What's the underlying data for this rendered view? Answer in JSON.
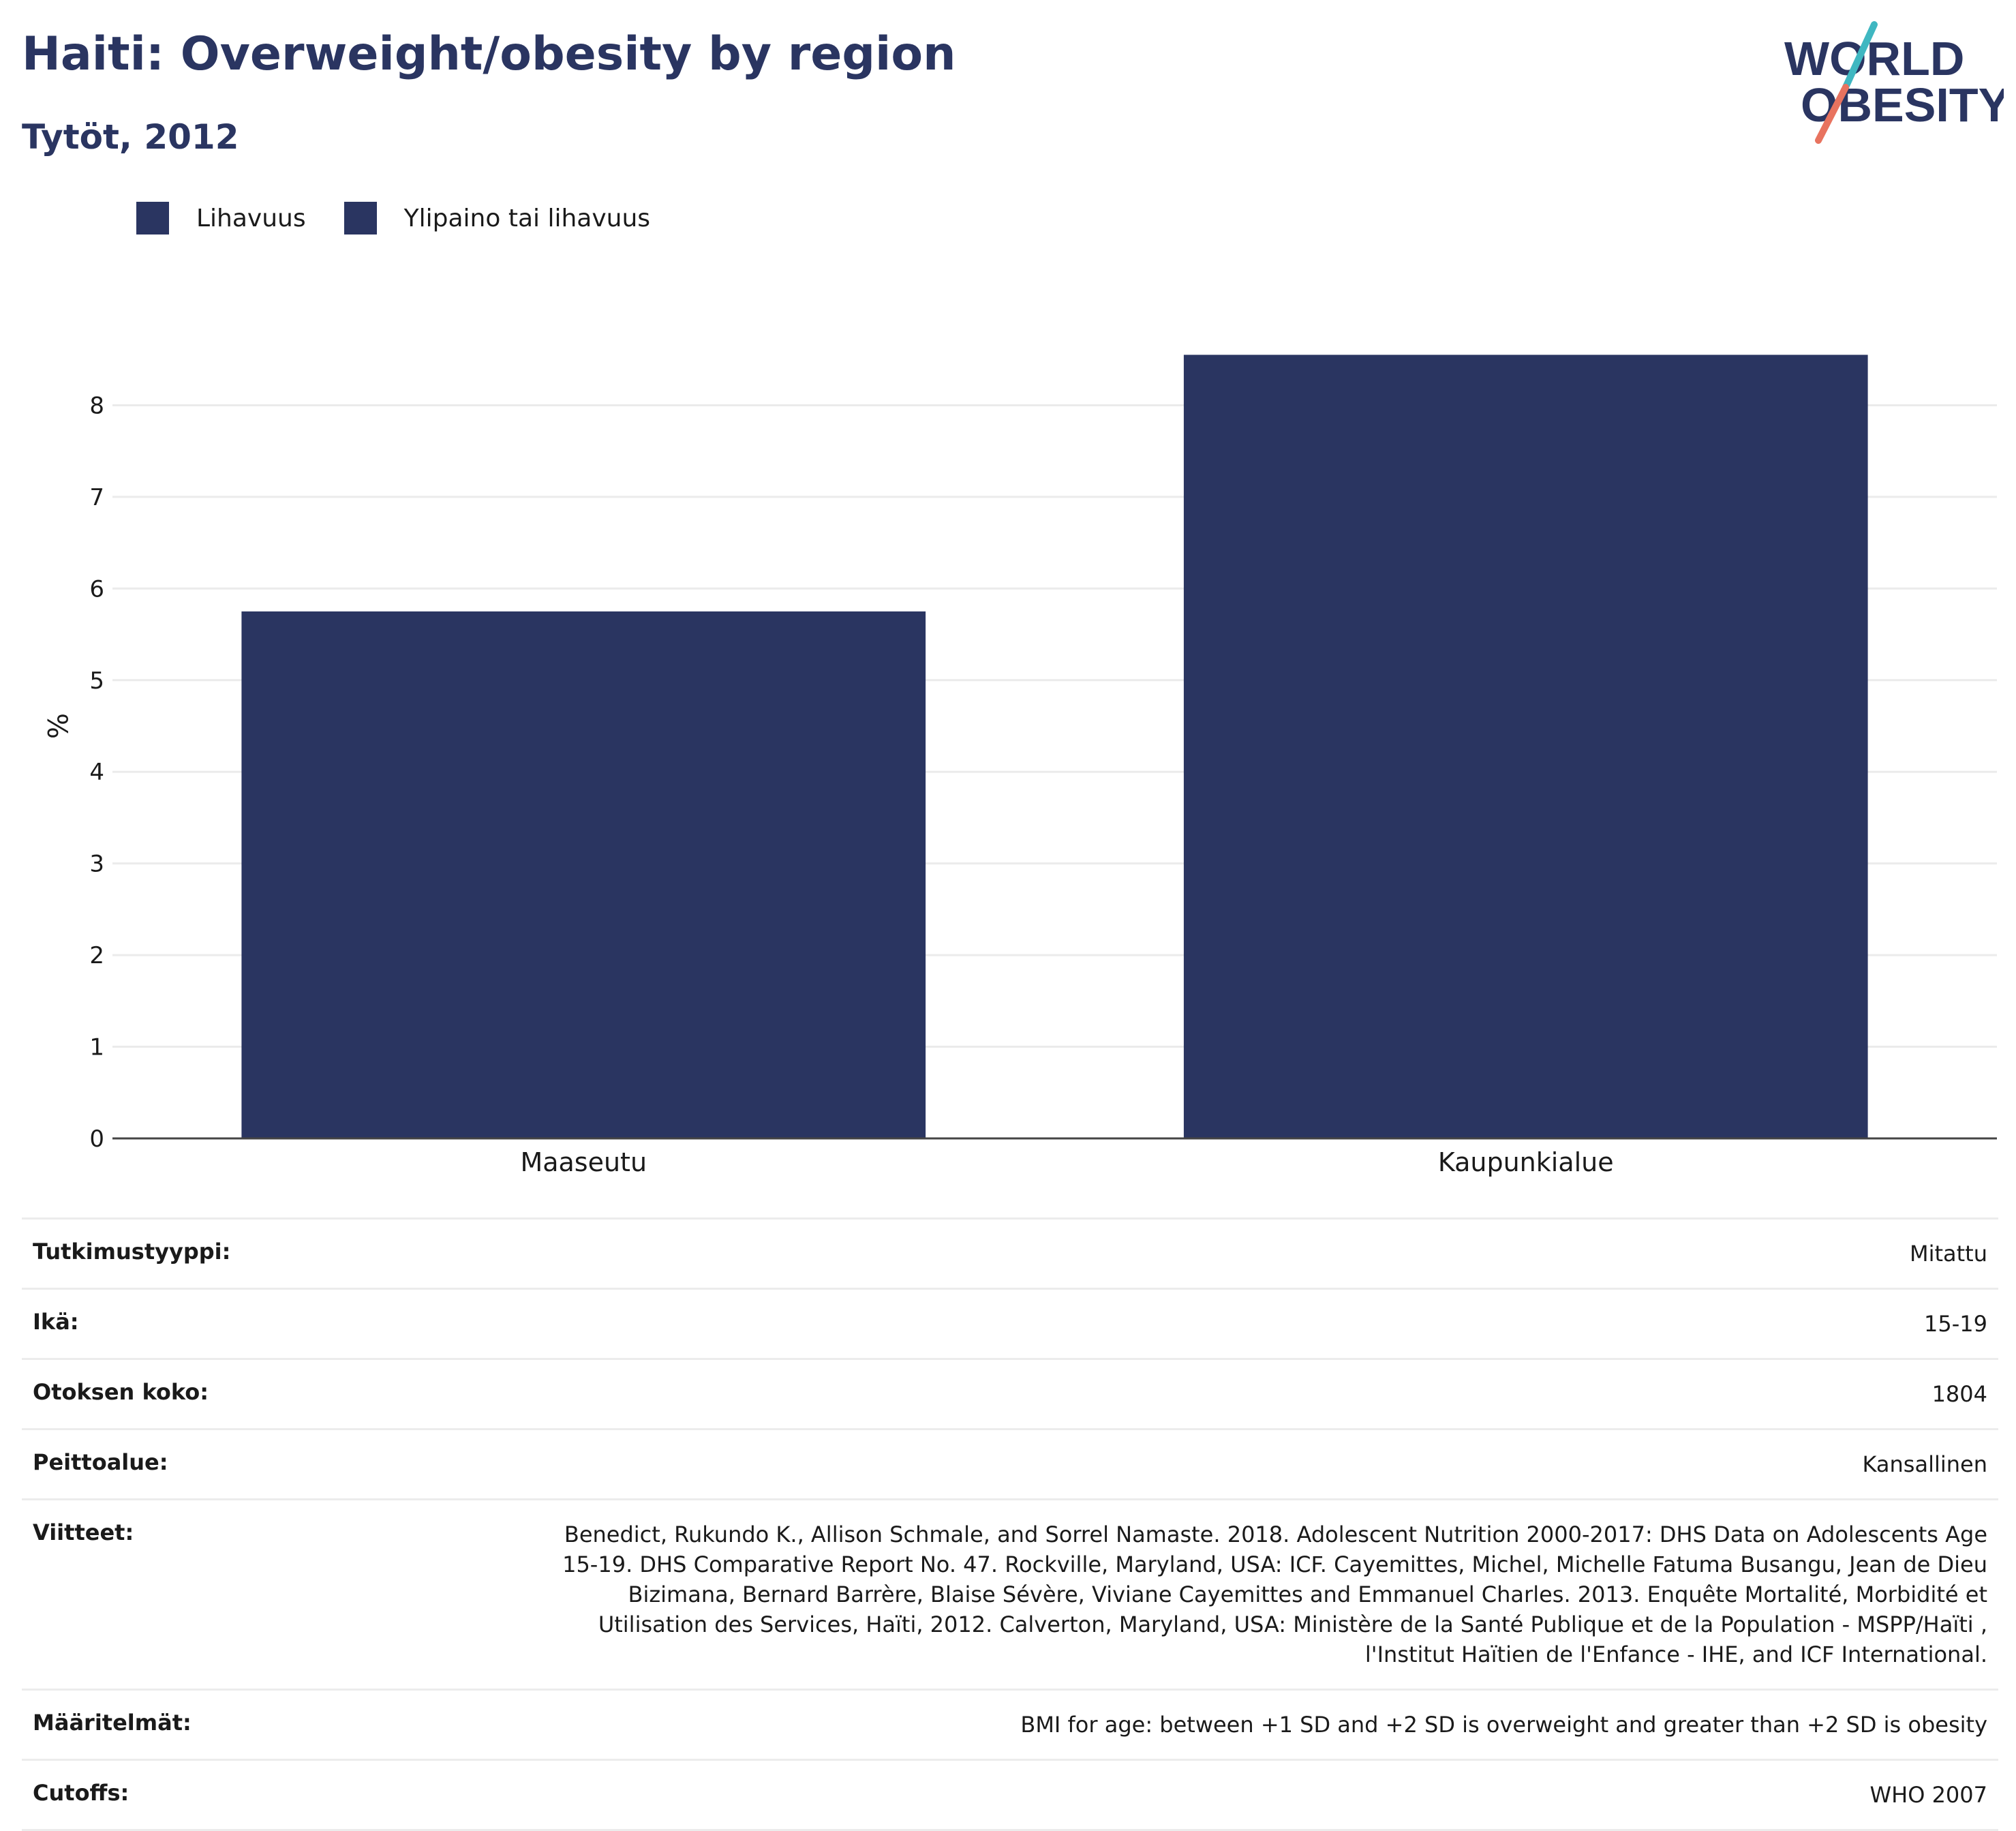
{
  "header": {
    "title": "Haiti: Overweight/obesity by region",
    "subtitle": "Tytöt, 2012"
  },
  "logo": {
    "line1": "WORLD",
    "line2": "OBESITY",
    "text_color": "#2a3561",
    "slash_colors": [
      "#3fb7c1",
      "#e8735f"
    ]
  },
  "legend": [
    {
      "label": "Lihavuus",
      "color": "#2a3561"
    },
    {
      "label": "Ylipaino tai lihavuus",
      "color": "#2a3561"
    }
  ],
  "chart_data": {
    "type": "bar",
    "categories": [
      "Maaseutu",
      "Kaupunkialue"
    ],
    "values": [
      5.75,
      8.55
    ],
    "ylabel": "%",
    "xlabel": "",
    "ylim": [
      0,
      9
    ],
    "yticks": [
      0,
      1,
      2,
      3,
      4,
      5,
      6,
      7,
      8
    ],
    "bar_color": "#2a3561",
    "grid": true
  },
  "info": [
    {
      "key": "Tutkimustyyppi:",
      "value": "Mitattu"
    },
    {
      "key": "Ikä:",
      "value": "15-19"
    },
    {
      "key": "Otoksen koko:",
      "value": "1804"
    },
    {
      "key": "Peittoalue:",
      "value": "Kansallinen"
    },
    {
      "key": "Viitteet:",
      "value": "Benedict, Rukundo K., Allison Schmale, and Sorrel Namaste. 2018. Adolescent Nutrition 2000-2017: DHS Data on Adolescents Age 15-19. DHS Comparative Report No. 47. Rockville, Maryland, USA: ICF. Cayemittes, Michel, Michelle Fatuma Busangu, Jean de Dieu Bizimana, Bernard Barrère, Blaise Sévère, Viviane Cayemittes and Emmanuel Charles. 2013. Enquête Mortalité, Morbidité et Utilisation des Services, Haïti, 2012. Calverton, Maryland, USA: Ministère de la Santé Publique et de la Population - MSPP/Haïti , l'Institut Haïtien de l'Enfance - IHE, and ICF International."
    },
    {
      "key": "Määritelmät:",
      "value": "BMI for age: between +1 SD and +2 SD is overweight and greater than +2 SD is obesity"
    },
    {
      "key": "Cutoffs:",
      "value": "WHO 2007"
    }
  ]
}
